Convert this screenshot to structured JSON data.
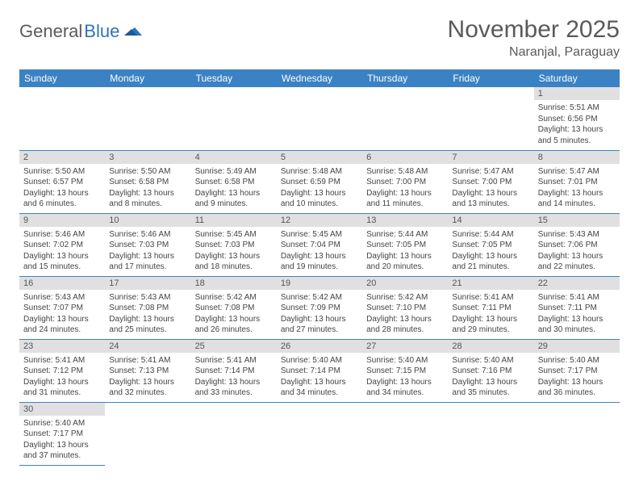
{
  "logo": {
    "text1": "General",
    "text2": "Blue",
    "text1_color": "#5a5a5a",
    "text2_color": "#2d74b8"
  },
  "title": "November 2025",
  "location": "Naranjal, Paraguay",
  "header_bg": "#3b82c4",
  "header_fg": "#ffffff",
  "daynum_bg": "#e0e0e0",
  "border_color": "#3b82c4",
  "weekdays": [
    "Sunday",
    "Monday",
    "Tuesday",
    "Wednesday",
    "Thursday",
    "Friday",
    "Saturday"
  ],
  "weeks": [
    [
      null,
      null,
      null,
      null,
      null,
      null,
      {
        "n": "1",
        "sr": "5:51 AM",
        "ss": "6:56 PM",
        "dl": "13 hours and 5 minutes."
      }
    ],
    [
      {
        "n": "2",
        "sr": "5:50 AM",
        "ss": "6:57 PM",
        "dl": "13 hours and 6 minutes."
      },
      {
        "n": "3",
        "sr": "5:50 AM",
        "ss": "6:58 PM",
        "dl": "13 hours and 8 minutes."
      },
      {
        "n": "4",
        "sr": "5:49 AM",
        "ss": "6:58 PM",
        "dl": "13 hours and 9 minutes."
      },
      {
        "n": "5",
        "sr": "5:48 AM",
        "ss": "6:59 PM",
        "dl": "13 hours and 10 minutes."
      },
      {
        "n": "6",
        "sr": "5:48 AM",
        "ss": "7:00 PM",
        "dl": "13 hours and 11 minutes."
      },
      {
        "n": "7",
        "sr": "5:47 AM",
        "ss": "7:00 PM",
        "dl": "13 hours and 13 minutes."
      },
      {
        "n": "8",
        "sr": "5:47 AM",
        "ss": "7:01 PM",
        "dl": "13 hours and 14 minutes."
      }
    ],
    [
      {
        "n": "9",
        "sr": "5:46 AM",
        "ss": "7:02 PM",
        "dl": "13 hours and 15 minutes."
      },
      {
        "n": "10",
        "sr": "5:46 AM",
        "ss": "7:03 PM",
        "dl": "13 hours and 17 minutes."
      },
      {
        "n": "11",
        "sr": "5:45 AM",
        "ss": "7:03 PM",
        "dl": "13 hours and 18 minutes."
      },
      {
        "n": "12",
        "sr": "5:45 AM",
        "ss": "7:04 PM",
        "dl": "13 hours and 19 minutes."
      },
      {
        "n": "13",
        "sr": "5:44 AM",
        "ss": "7:05 PM",
        "dl": "13 hours and 20 minutes."
      },
      {
        "n": "14",
        "sr": "5:44 AM",
        "ss": "7:05 PM",
        "dl": "13 hours and 21 minutes."
      },
      {
        "n": "15",
        "sr": "5:43 AM",
        "ss": "7:06 PM",
        "dl": "13 hours and 22 minutes."
      }
    ],
    [
      {
        "n": "16",
        "sr": "5:43 AM",
        "ss": "7:07 PM",
        "dl": "13 hours and 24 minutes."
      },
      {
        "n": "17",
        "sr": "5:43 AM",
        "ss": "7:08 PM",
        "dl": "13 hours and 25 minutes."
      },
      {
        "n": "18",
        "sr": "5:42 AM",
        "ss": "7:08 PM",
        "dl": "13 hours and 26 minutes."
      },
      {
        "n": "19",
        "sr": "5:42 AM",
        "ss": "7:09 PM",
        "dl": "13 hours and 27 minutes."
      },
      {
        "n": "20",
        "sr": "5:42 AM",
        "ss": "7:10 PM",
        "dl": "13 hours and 28 minutes."
      },
      {
        "n": "21",
        "sr": "5:41 AM",
        "ss": "7:11 PM",
        "dl": "13 hours and 29 minutes."
      },
      {
        "n": "22",
        "sr": "5:41 AM",
        "ss": "7:11 PM",
        "dl": "13 hours and 30 minutes."
      }
    ],
    [
      {
        "n": "23",
        "sr": "5:41 AM",
        "ss": "7:12 PM",
        "dl": "13 hours and 31 minutes."
      },
      {
        "n": "24",
        "sr": "5:41 AM",
        "ss": "7:13 PM",
        "dl": "13 hours and 32 minutes."
      },
      {
        "n": "25",
        "sr": "5:41 AM",
        "ss": "7:14 PM",
        "dl": "13 hours and 33 minutes."
      },
      {
        "n": "26",
        "sr": "5:40 AM",
        "ss": "7:14 PM",
        "dl": "13 hours and 34 minutes."
      },
      {
        "n": "27",
        "sr": "5:40 AM",
        "ss": "7:15 PM",
        "dl": "13 hours and 34 minutes."
      },
      {
        "n": "28",
        "sr": "5:40 AM",
        "ss": "7:16 PM",
        "dl": "13 hours and 35 minutes."
      },
      {
        "n": "29",
        "sr": "5:40 AM",
        "ss": "7:17 PM",
        "dl": "13 hours and 36 minutes."
      }
    ],
    [
      {
        "n": "30",
        "sr": "5:40 AM",
        "ss": "7:17 PM",
        "dl": "13 hours and 37 minutes."
      },
      null,
      null,
      null,
      null,
      null,
      null
    ]
  ],
  "labels": {
    "sunrise": "Sunrise:",
    "sunset": "Sunset:",
    "daylight": "Daylight:"
  }
}
